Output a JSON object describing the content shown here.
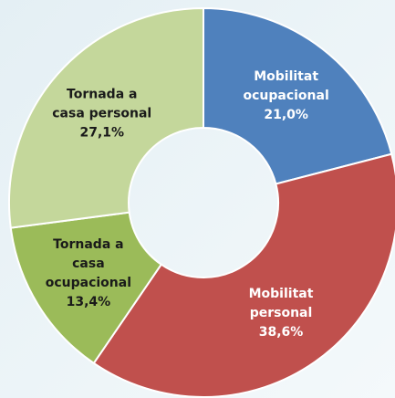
{
  "chart_data": {
    "type": "donut",
    "categories": [
      "Mobilitat ocupacional",
      "Mobilitat personal",
      "Tornada a casa ocupacional",
      "Tornada a casa personal"
    ],
    "values": [
      21.0,
      38.6,
      13.4,
      27.1
    ],
    "value_labels": [
      "21,0%",
      "38,6%",
      "13,4%",
      "27,1%"
    ],
    "colors": [
      "#4f81bd",
      "#c0504d",
      "#9bbb59",
      "#c4d79b"
    ]
  }
}
